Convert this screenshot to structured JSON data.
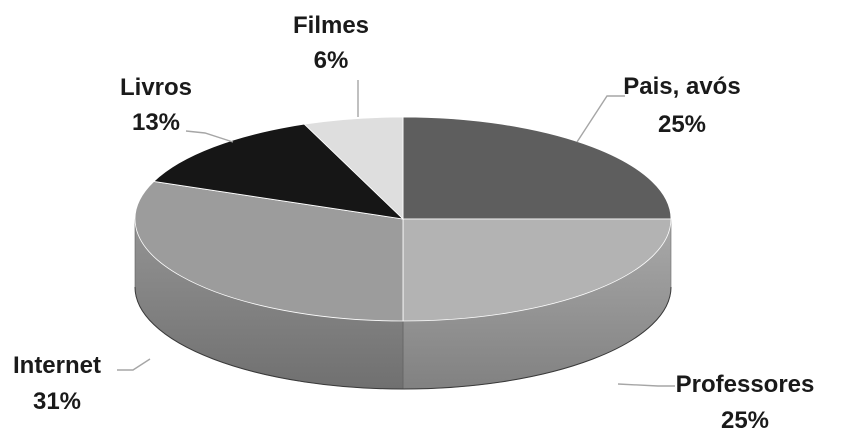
{
  "chart_data": {
    "type": "pie",
    "title": "",
    "slices": [
      {
        "label": "Pais, avós",
        "value": 25,
        "percent_label": "25%",
        "color": "#5e5e5e"
      },
      {
        "label": "Professores",
        "value": 25,
        "percent_label": "25%",
        "color": "#b3b3b3"
      },
      {
        "label": "Internet",
        "value": 31,
        "percent_label": "31%",
        "color": "#9c9c9c"
      },
      {
        "label": "Livros",
        "value": 13,
        "percent_label": "13%",
        "color": "#161616"
      },
      {
        "label": "Filmes",
        "value": 6,
        "percent_label": "6%",
        "color": "#dedede"
      }
    ],
    "style": "3d-pie",
    "legend": "none",
    "data_labels": "outside-with-leader-lines"
  }
}
